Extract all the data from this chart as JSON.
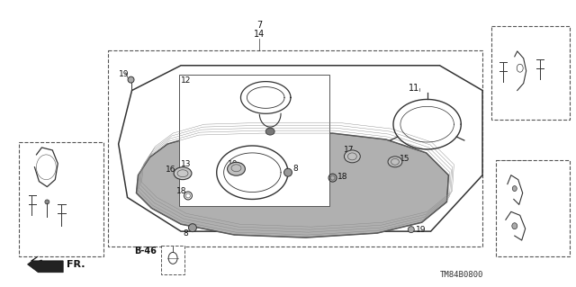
{
  "background_color": "#ffffff",
  "fig_width": 6.4,
  "fig_height": 3.19,
  "dpi": 100,
  "footer_code": "B-46",
  "footer_ref": "TM84B0800"
}
